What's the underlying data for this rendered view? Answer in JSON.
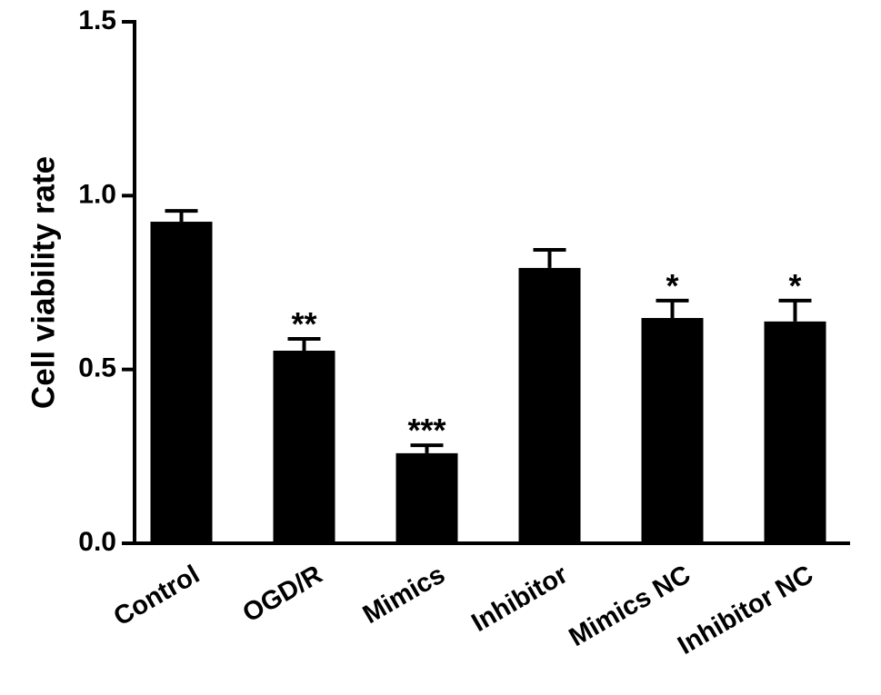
{
  "chart_data": {
    "type": "bar",
    "y_label": "Cell viability rate",
    "categories": [
      "Control",
      "OGD/R",
      "Mimics",
      "Inhibitor",
      "Mimics NC",
      "Inhibitor NC"
    ],
    "values": [
      0.925,
      0.554,
      0.259,
      0.792,
      0.648,
      0.638
    ],
    "errors": [
      0.031,
      0.034,
      0.023,
      0.052,
      0.05,
      0.06
    ],
    "annotations": [
      null,
      "**",
      "***",
      null,
      "*",
      "*"
    ],
    "color": "#000000",
    "ylim": [
      0,
      1.5
    ],
    "yticks": [
      {
        "value": 0,
        "label": "0.0"
      },
      {
        "value": 0.5,
        "label": "0.5"
      },
      {
        "value": 1,
        "label": "1.0"
      },
      {
        "value": 1.5,
        "label": "1.5"
      }
    ]
  }
}
